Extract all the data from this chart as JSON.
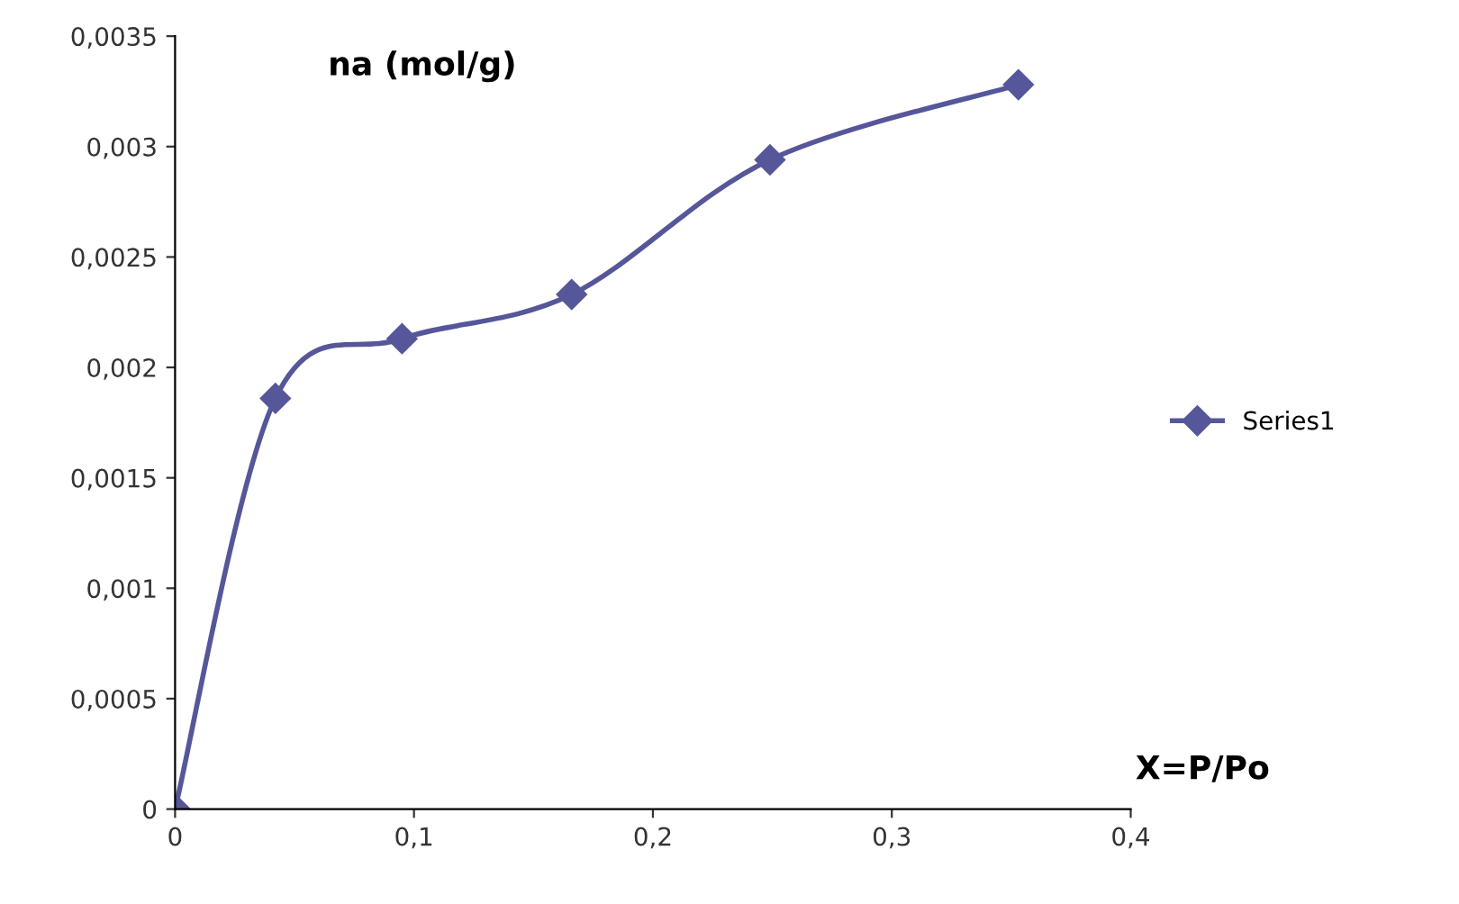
{
  "chart_data": {
    "type": "line",
    "title": "na (mol/g)",
    "xlabel": "X=P/Po",
    "x": [
      0,
      0.042,
      0.095,
      0.166,
      0.249,
      0.353
    ],
    "series": [
      {
        "name": "Series1",
        "color": "#56569a",
        "values": [
          0,
          0.00186,
          0.00213,
          0.00233,
          0.00294,
          0.00328
        ]
      }
    ],
    "xlim": [
      0,
      0.4
    ],
    "ylim": [
      0,
      0.0035
    ],
    "xticks": [
      0,
      {
        "value": 0.1,
        "label": "0,1"
      },
      {
        "value": 0.2,
        "label": "0,2"
      },
      {
        "value": 0.3,
        "label": "0,3"
      },
      {
        "value": 0.4,
        "label": "0,4"
      }
    ],
    "yticks": [
      0,
      {
        "value": 0.0005,
        "label": "0,0005"
      },
      {
        "value": 0.001,
        "label": "0,001"
      },
      {
        "value": 0.0015,
        "label": "0,0015"
      },
      {
        "value": 0.002,
        "label": "0,002"
      },
      {
        "value": 0.0025,
        "label": "0,0025"
      },
      {
        "value": 0.003,
        "label": "0,003"
      },
      {
        "value": 0.0035,
        "label": "0,0035"
      }
    ],
    "grid": false,
    "legend": "right",
    "marker": "diamond",
    "line_style": "solid"
  }
}
